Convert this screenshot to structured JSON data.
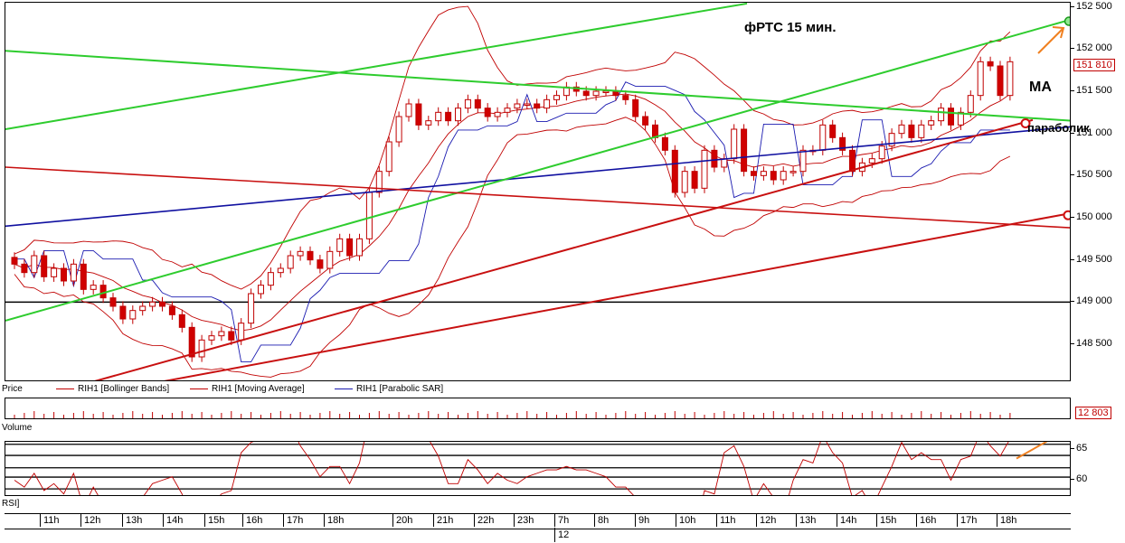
{
  "chart_data": {
    "type": "candlestick",
    "title": "фРТС   15 мин.",
    "symbol": "RIH1",
    "price_axis": {
      "ticks": [
        "152 500",
        "152 000",
        "151 500",
        "151 000",
        "150 500",
        "150 000",
        "149 500",
        "149 000",
        "148 500"
      ],
      "tick_values": [
        152500,
        152000,
        151500,
        151000,
        150500,
        150000,
        149500,
        149000,
        148500
      ],
      "range": [
        148050,
        152550
      ],
      "last_price_label": "151 810",
      "last_price": 151810
    },
    "volume_axis": {
      "last_value_label": "12 803"
    },
    "rsi_axis": {
      "ticks": [
        "65",
        "60"
      ],
      "tick_values": [
        65,
        60
      ],
      "range": [
        57.3,
        66.2
      ]
    },
    "time_axis": {
      "labels": [
        "11h",
        "12h",
        "13h",
        "14h",
        "15h",
        "16h",
        "17h",
        "18h",
        "20h",
        "21h",
        "22h",
        "23h",
        "7h",
        "8h",
        "9h",
        "10h",
        "11h",
        "12h",
        "13h",
        "14h",
        "15h",
        "16h",
        "17h",
        "18h"
      ],
      "date_label": "12"
    },
    "panel_labels": {
      "price": "Price",
      "volume": "Volume",
      "rsi": "RSI]"
    },
    "legend": [
      {
        "name": "RIH1 [Bollinger Bands]",
        "color": "#c00000"
      },
      {
        "name": "RIH1 [Moving Average]",
        "color": "#c00000"
      },
      {
        "name": "RIH1 [Parabolic SAR]",
        "color": "#1a1ab0"
      }
    ],
    "annotations": {
      "ma": "МА",
      "parabolic": "параболик"
    },
    "series": {
      "close": [
        149450,
        149350,
        149550,
        149300,
        149400,
        149250,
        149450,
        149150,
        149200,
        149050,
        148950,
        148800,
        148900,
        148950,
        149000,
        148950,
        148850,
        148700,
        148350,
        148550,
        148600,
        148650,
        148550,
        148750,
        149100,
        149200,
        149350,
        149400,
        149550,
        149600,
        149500,
        149400,
        149600,
        149750,
        149550,
        149750,
        150300,
        150550,
        150900,
        151200,
        151350,
        151100,
        151150,
        151250,
        151150,
        151300,
        151400,
        151300,
        151200,
        151250,
        151300,
        151350,
        151350,
        151300,
        151400,
        151450,
        151550,
        151500,
        151450,
        151500,
        151500,
        151450,
        151400,
        151200,
        151100,
        150950,
        150800,
        150300,
        150550,
        150350,
        150800,
        150600,
        150700,
        151050,
        150550,
        150500,
        150550,
        150450,
        150550,
        150550,
        150800,
        150800,
        151100,
        150950,
        150800,
        150550,
        150650,
        150700,
        150850,
        151000,
        151100,
        150950,
        151100,
        151150,
        151300,
        151100,
        151250,
        151450,
        151850,
        151800,
        151450,
        151850
      ]
    },
    "bands": {
      "upper": [],
      "middle": [],
      "lower": []
    },
    "parabolic_sar": [],
    "trendlines": {
      "green": [],
      "blue": [],
      "red": [],
      "black_horizontal": 149000
    }
  }
}
